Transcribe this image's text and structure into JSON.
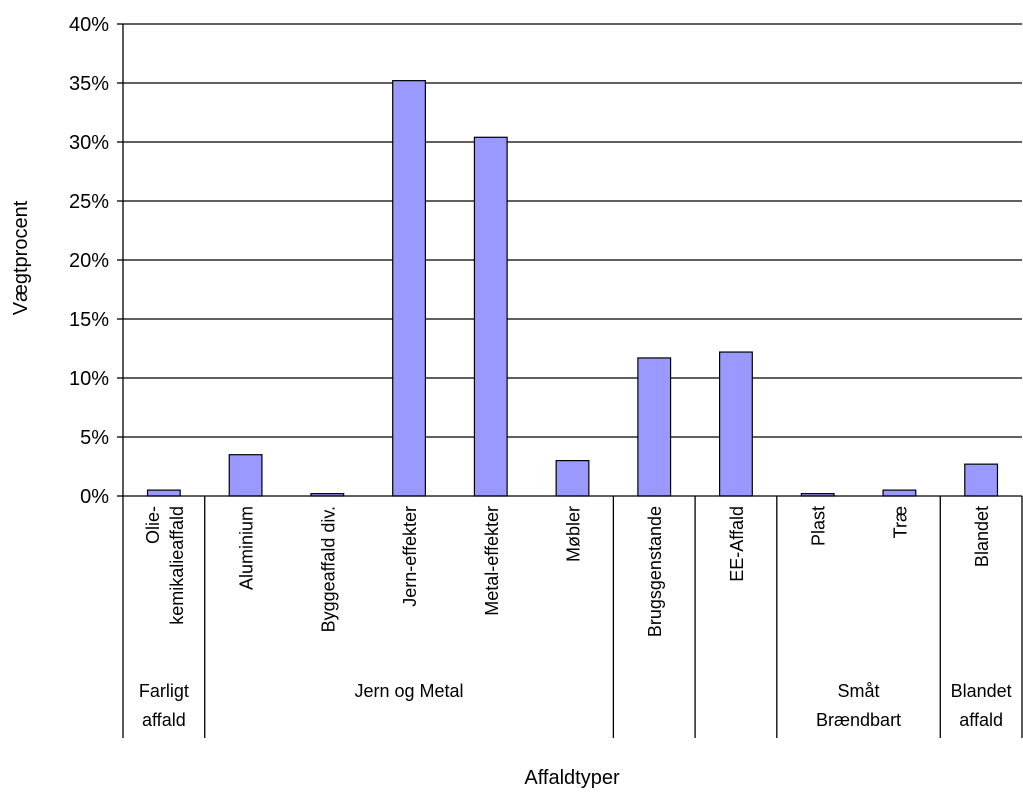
{
  "chart_data": {
    "type": "bar",
    "categories": [
      "Olie-kemikalieaffald",
      "Aluminium",
      "Byggeaffald div.",
      "Jern-effekter",
      "Metal-effekter",
      "Møbler",
      "Brugsgenstande",
      "EE-Affald",
      "Plast",
      "Træ",
      "Blandet"
    ],
    "category_lines": [
      [
        "Olie-",
        "kemikalieaffald"
      ],
      [
        "Aluminium"
      ],
      [
        "Byggeaffald div."
      ],
      [
        "Jern-effekter"
      ],
      [
        "Metal-effekter"
      ],
      [
        "Møbler"
      ],
      [
        "Brugsgenstande"
      ],
      [
        "EE-Affald"
      ],
      [
        "Plast"
      ],
      [
        "Træ"
      ],
      [
        "Blandet"
      ]
    ],
    "values": [
      0.5,
      3.5,
      0.2,
      35.2,
      30.4,
      3.0,
      11.7,
      12.2,
      0.2,
      0.5,
      2.7
    ],
    "groups": [
      {
        "lines": [
          "Farligt",
          "affald"
        ],
        "span": [
          0,
          0
        ]
      },
      {
        "lines": [
          "Jern og Metal"
        ],
        "span": [
          1,
          5
        ]
      },
      {
        "lines": [
          ""
        ],
        "span": [
          6,
          6
        ]
      },
      {
        "lines": [
          ""
        ],
        "span": [
          7,
          7
        ]
      },
      {
        "lines": [
          "Småt",
          "Brændbart"
        ],
        "span": [
          8,
          9
        ]
      },
      {
        "lines": [
          "Blandet",
          "affald"
        ],
        "span": [
          10,
          10
        ]
      }
    ],
    "ylabel": "Vægtprocent",
    "xlabel": "Affaldtyper",
    "ylim": [
      0,
      40
    ],
    "yticks": [
      0,
      5,
      10,
      15,
      20,
      25,
      30,
      35,
      40
    ],
    "ytick_suffix": "%",
    "grid": true,
    "bar_color": "#9999ff",
    "bar_edge_color": "#000000"
  }
}
